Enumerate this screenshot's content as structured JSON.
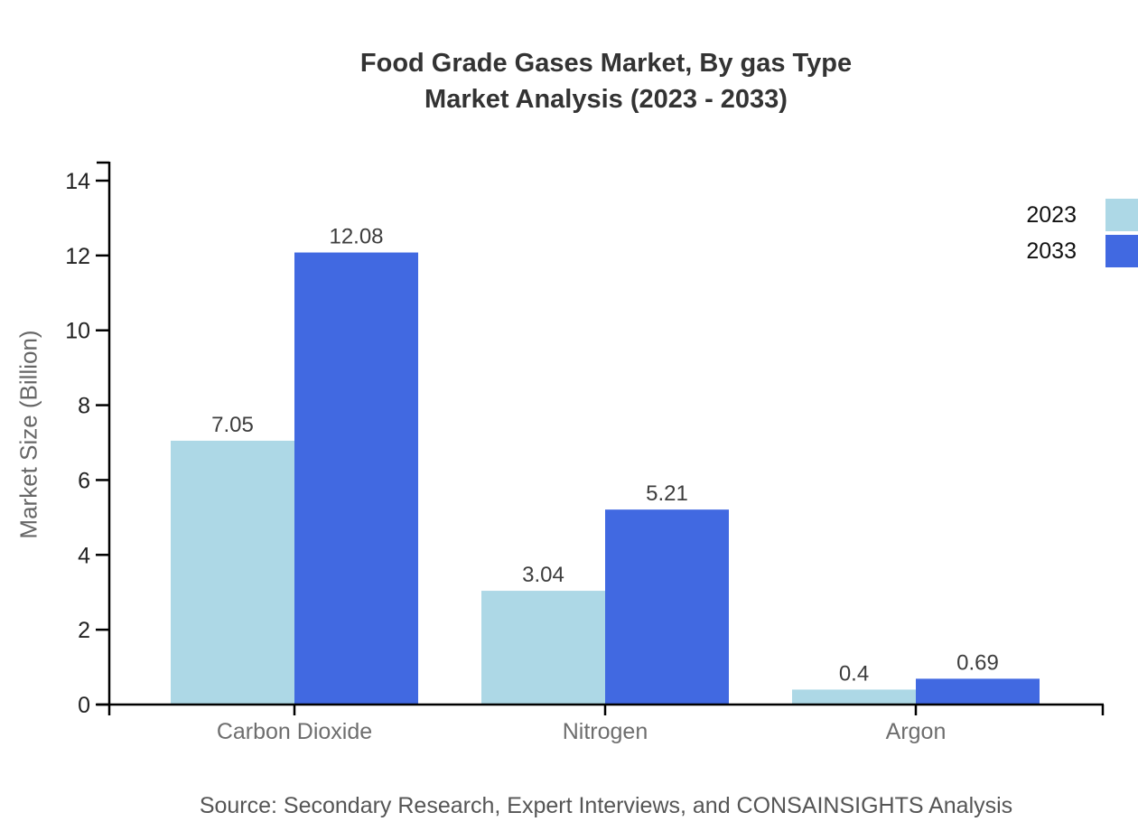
{
  "title": {
    "line1": "Food Grade Gases Market, By gas Type",
    "line2": "Market Analysis (2023 - 2033)"
  },
  "source_note": "Source: Secondary Research, Expert Interviews, and CONSAINSIGHTS Analysis",
  "chart_data": {
    "type": "bar",
    "title": "Food Grade Gases Market, By gas Type Market Analysis (2023 - 2033)",
    "categories": [
      "Carbon Dioxide",
      "Nitrogen",
      "Argon"
    ],
    "series": [
      {
        "name": "2023",
        "color": "#ADD8E6",
        "values": [
          7.05,
          3.04,
          0.4
        ]
      },
      {
        "name": "2033",
        "color": "#4169E1",
        "values": [
          12.08,
          5.21,
          0.69
        ]
      }
    ],
    "xlabel": "",
    "ylabel": "Market Size (Billion)",
    "ylim": [
      0,
      14
    ],
    "yticks": [
      0,
      2,
      4,
      6,
      8,
      10,
      12,
      14
    ],
    "grid": false,
    "legend_position": "top-right",
    "value_labels_shown": true,
    "colors": {
      "axis": "#000000",
      "title_text": "#333333",
      "ytick_text": "#222222",
      "category_text": "#6e6e6e",
      "value_text": "#3d3d3d",
      "ylabel_text": "#666666",
      "source_text": "#555555",
      "legend_text": "#111111"
    }
  }
}
